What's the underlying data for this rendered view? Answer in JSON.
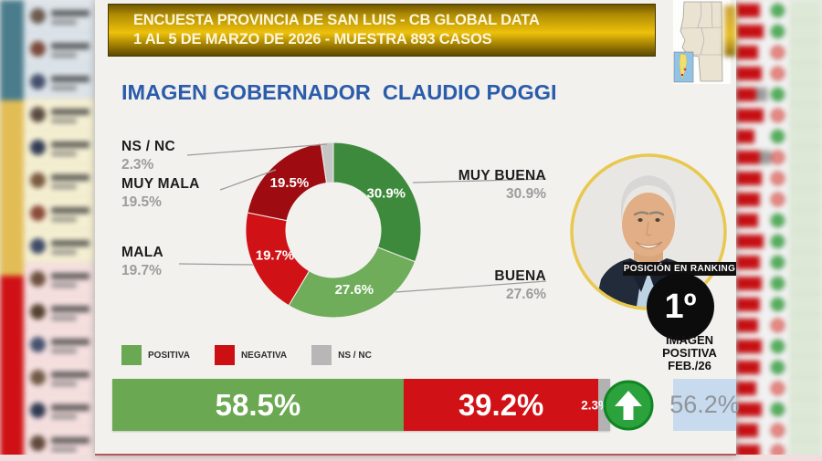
{
  "banner": {
    "line1": "ENCUESTA PROVINCIA DE SAN LUIS - CB GLOBAL DATA",
    "line2": "1 AL 5 DE MARZO DE 2026 - MUESTRA 893 CASOS"
  },
  "title": "IMAGEN GOBERNADOR  CLAUDIO POGGI",
  "chart_data": {
    "type": "pie",
    "title": "IMAGEN GOBERNADOR CLAUDIO POGGI",
    "donut": true,
    "slices": [
      {
        "label": "MUY BUENA",
        "value": 30.9,
        "display": "30.9%",
        "color": "#3e8a3c",
        "side": "right"
      },
      {
        "label": "BUENA",
        "value": 27.6,
        "display": "27.6%",
        "color": "#70ad5b",
        "side": "right"
      },
      {
        "label": "MALA",
        "value": 19.7,
        "display": "19.7%",
        "color": "#d01116",
        "side": "left"
      },
      {
        "label": "MUY MALA",
        "value": 19.5,
        "display": "19.5%",
        "color": "#9e0c11",
        "side": "left"
      },
      {
        "label": "NS / NC",
        "value": 2.3,
        "display": "2.3%",
        "color": "#c6c6c6",
        "side": "left"
      }
    ],
    "legend": [
      {
        "label": "POSITIVA",
        "color": "#6aa851"
      },
      {
        "label": "NEGATIVA",
        "color": "#cc0f13"
      },
      {
        "label": "NS / NC",
        "color": "#b7b7b7"
      }
    ],
    "summary_bar": {
      "type": "stacked-bar",
      "segments": [
        {
          "label": "POSITIVA",
          "value": 58.5,
          "display": "58.5%",
          "color": "#6aa851"
        },
        {
          "label": "NEGATIVA",
          "value": 39.2,
          "display": "39.2%",
          "color": "#d01116"
        },
        {
          "label": "NS / NC",
          "value": 2.3,
          "display": "2.3%",
          "color": "#b2b2b2"
        }
      ]
    }
  },
  "ranking": {
    "label": "POSICIÓN EN RANKING",
    "position": "1º"
  },
  "positive_image": {
    "line1": "IMAGEN",
    "line2": "POSITIVA",
    "line3": "FEB./26",
    "value": "56.2%"
  },
  "trend": {
    "direction": "up",
    "color": "#2ca23c"
  }
}
